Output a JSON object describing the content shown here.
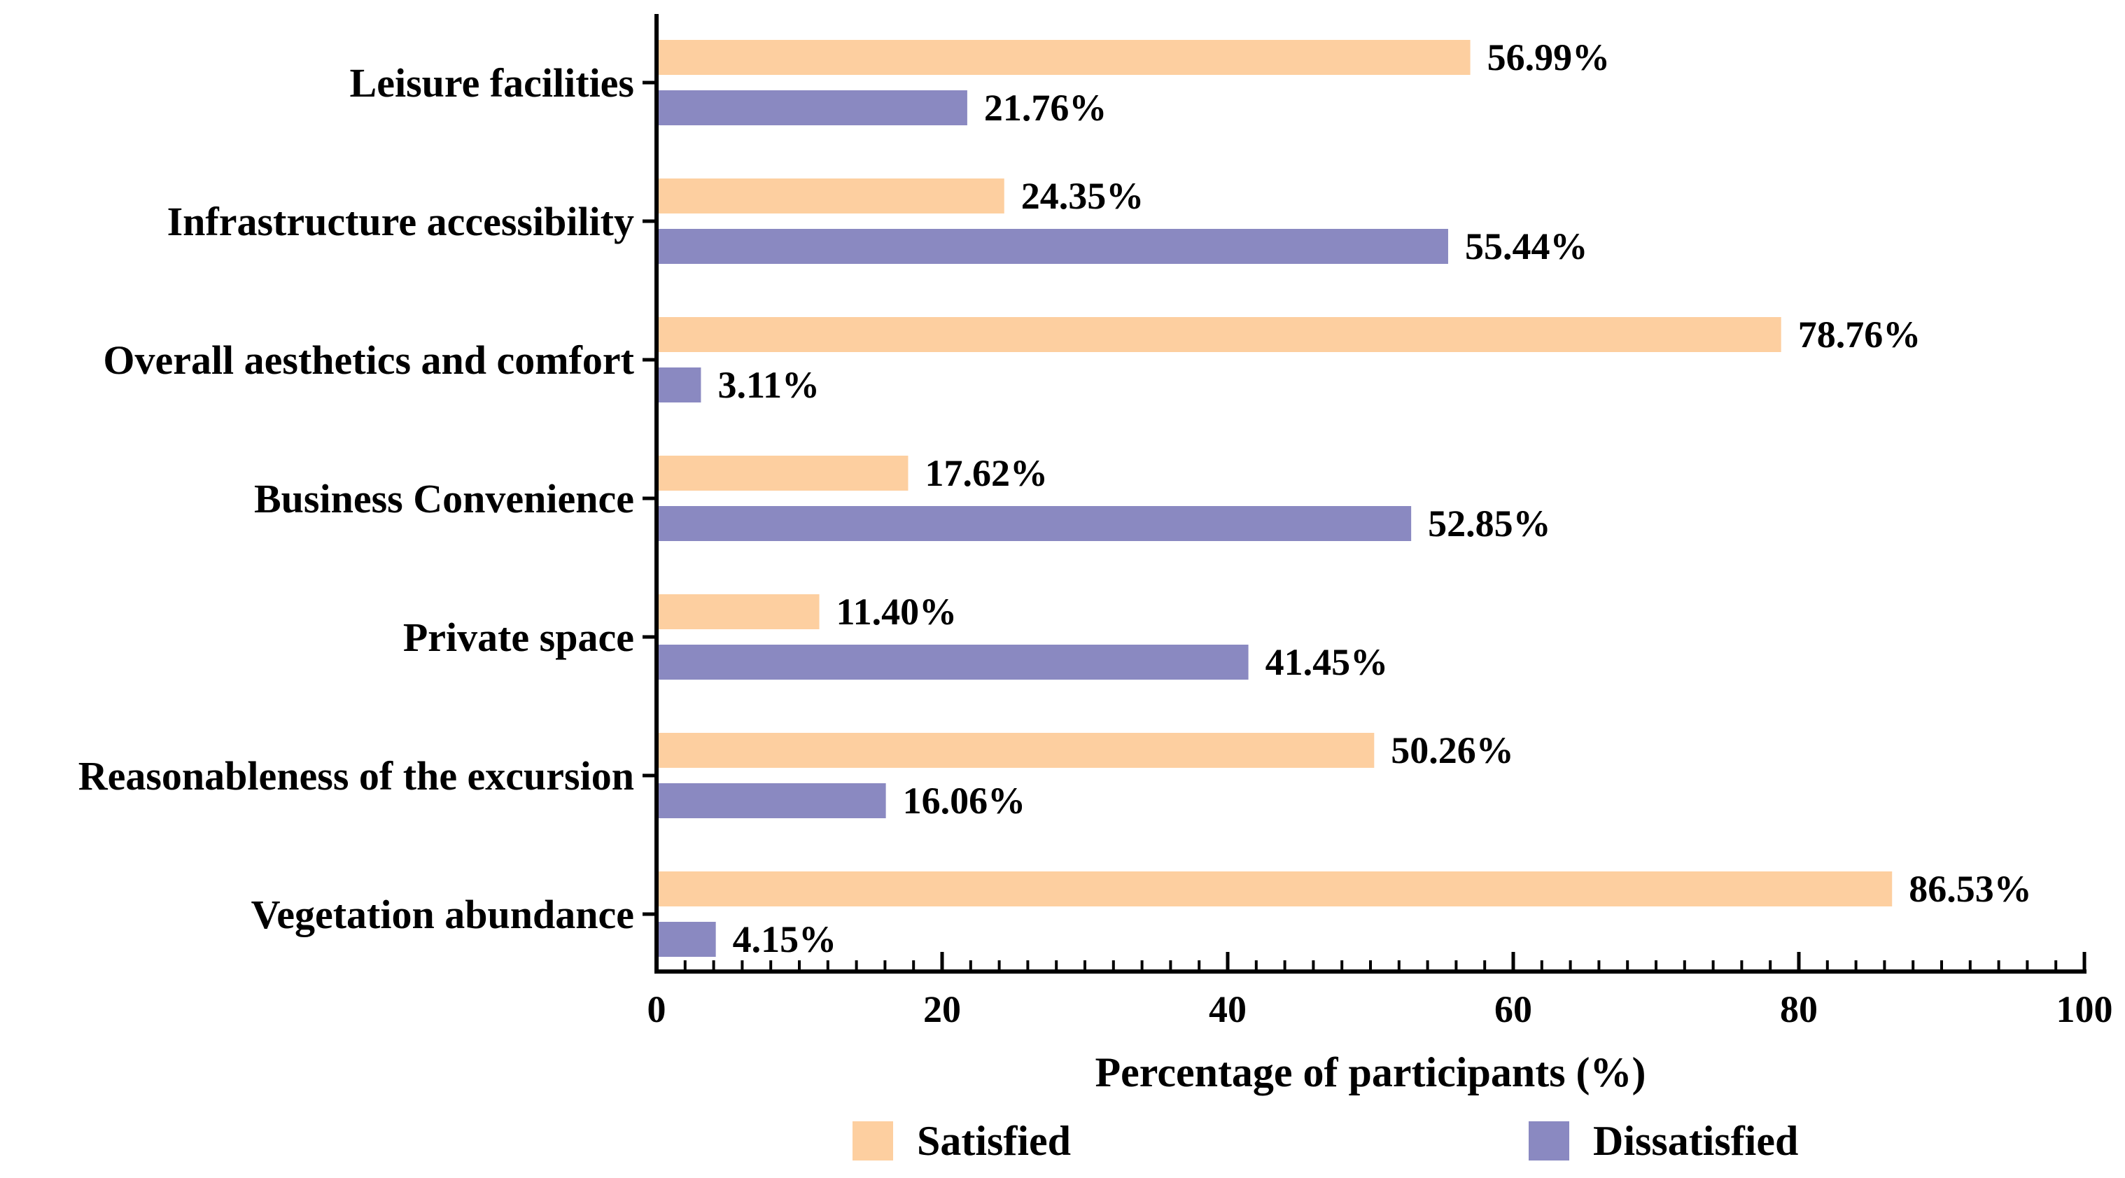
{
  "chart_data": {
    "type": "bar",
    "orientation": "horizontal",
    "title": "",
    "xlabel": "Percentage of participants (%)",
    "ylabel": "",
    "xlim": [
      0,
      100
    ],
    "x_ticks": [
      "0",
      "20",
      "40",
      "60",
      "80",
      "100"
    ],
    "grid": false,
    "legend_position": "bottom",
    "categories": [
      "Leisure facilities",
      "Infrastructure accessibility",
      "Overall aesthetics and comfort",
      "Business Convenience",
      "Private space",
      "Reasonableness of the excursion",
      "Vegetation abundance"
    ],
    "series": [
      {
        "name": "Satisfied",
        "color": "#FDCFA0",
        "values": [
          56.99,
          24.35,
          78.76,
          17.62,
          11.4,
          50.26,
          86.53
        ],
        "labels": [
          "56.99%",
          "24.35%",
          "78.76%",
          "17.62%",
          "11.40%",
          "50.26%",
          "86.53%"
        ]
      },
      {
        "name": "Dissatisfied",
        "color": "#8A89C1",
        "values": [
          21.76,
          55.44,
          3.11,
          52.85,
          41.45,
          16.06,
          4.15
        ],
        "labels": [
          "21.76%",
          "55.44%",
          "3.11%",
          "52.85%",
          "41.45%",
          "16.06%",
          "4.15%"
        ]
      }
    ]
  }
}
